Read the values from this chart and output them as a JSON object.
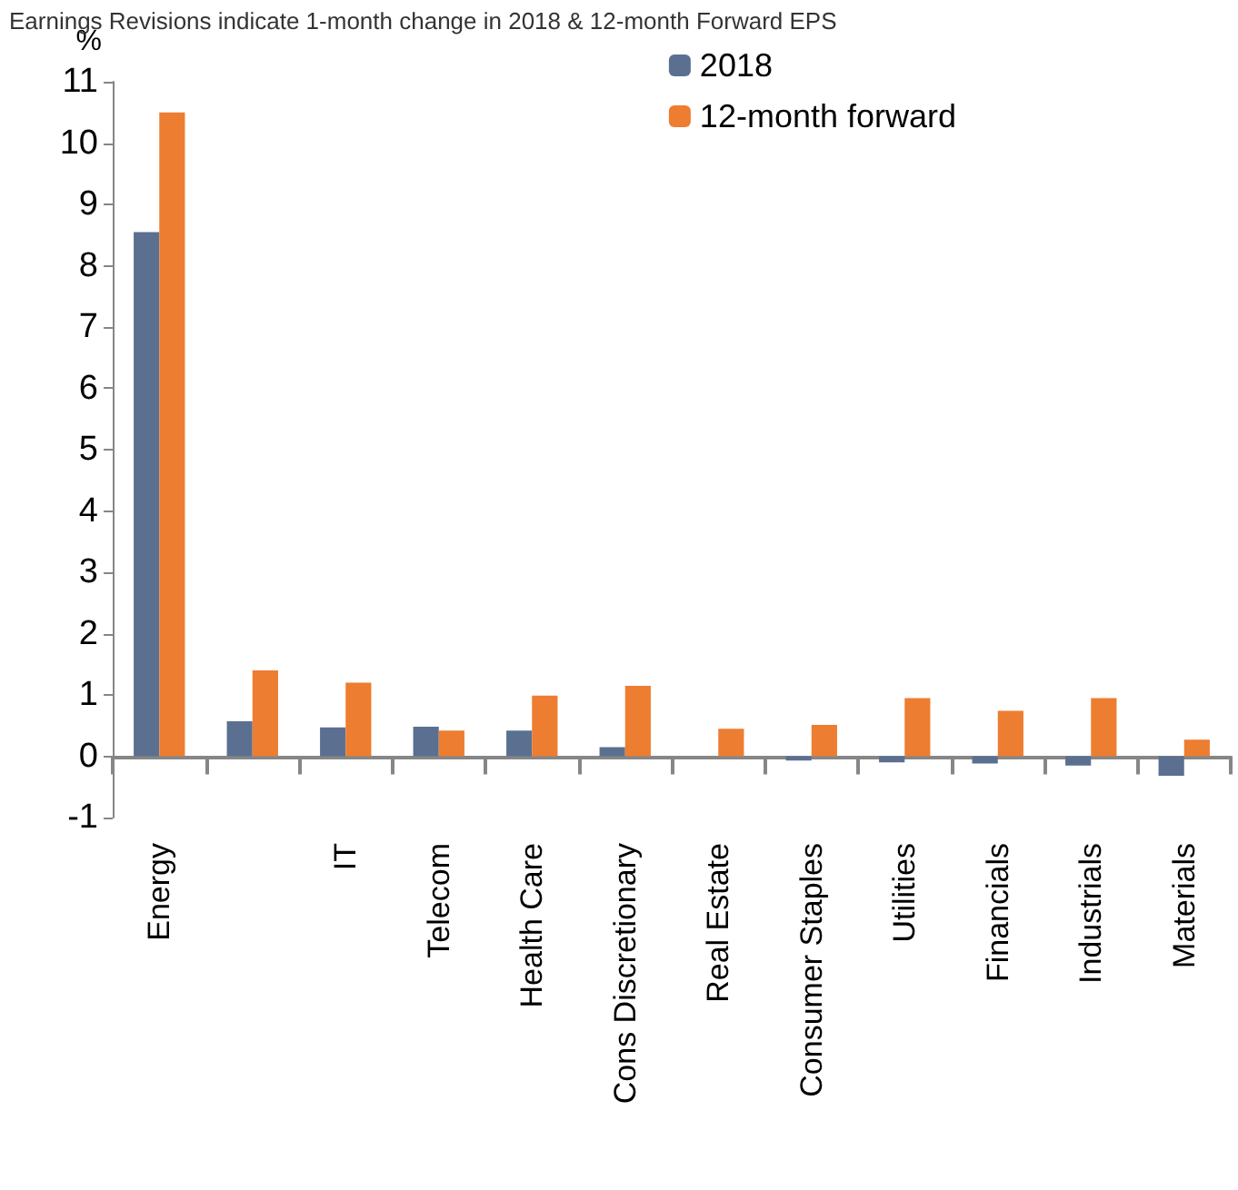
{
  "chart_data": {
    "type": "bar",
    "title": "Earnings Revisions indicate 1-month change in 2018 & 12-month Forward EPS",
    "ylabel": "%",
    "categories": [
      "Energy",
      null,
      "IT",
      "Telecom",
      "Health Care",
      "Cons Discretionary",
      "Real Estate",
      "Consumer Staples",
      "Utilities",
      "Financials",
      "Industrials",
      "Materials"
    ],
    "series": [
      {
        "name": "2018",
        "color": "#5b7090",
        "values": [
          8.55,
          0.57,
          0.47,
          0.48,
          0.42,
          0.15,
          null,
          -0.07,
          -0.1,
          -0.12,
          -0.15,
          -0.32
        ]
      },
      {
        "name": "12-month forward",
        "color": "#ed7d31",
        "values": [
          10.5,
          1.4,
          1.2,
          0.42,
          0.99,
          1.15,
          0.45,
          0.51,
          0.95,
          0.74,
          0.95,
          0.27
        ]
      }
    ],
    "ylim": [
      -1,
      11
    ],
    "yticks": [
      -1,
      0,
      1,
      2,
      3,
      4,
      5,
      6,
      7,
      8,
      9,
      10,
      11
    ],
    "legend": "top right"
  }
}
